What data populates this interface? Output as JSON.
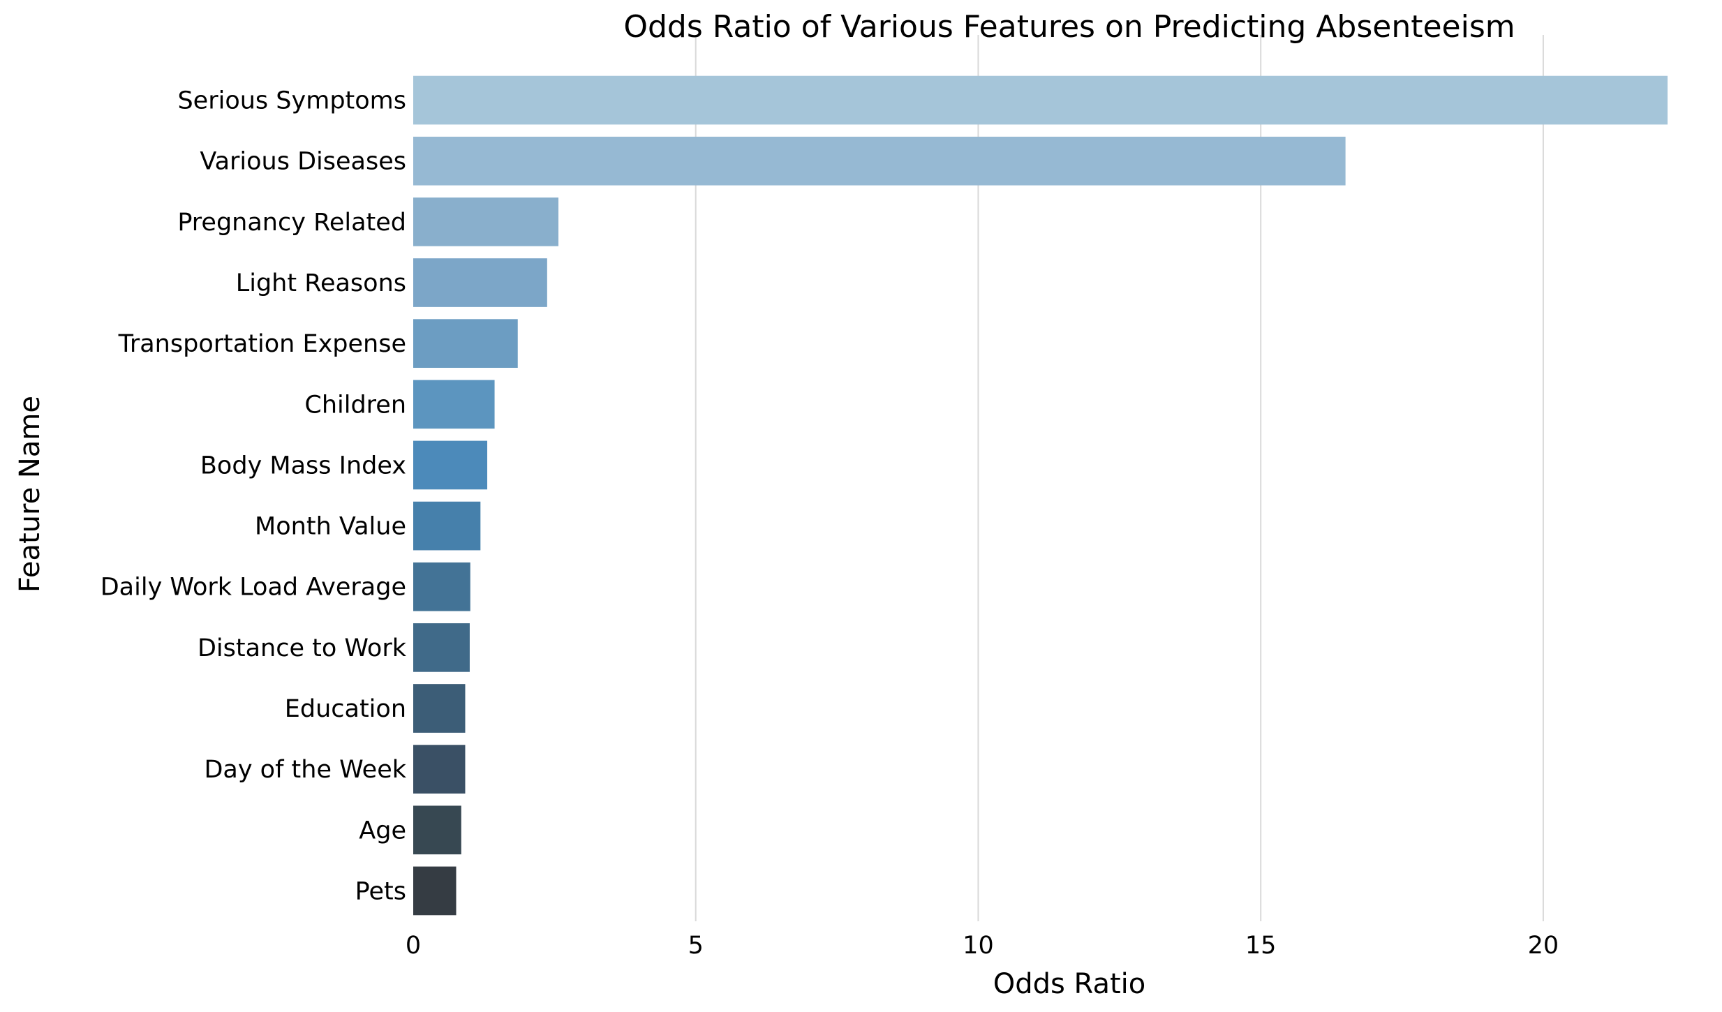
{
  "chart_data": {
    "type": "bar",
    "orientation": "horizontal",
    "title": "Odds Ratio of Various Features on Predicting Absenteeism",
    "xlabel": "Odds Ratio",
    "ylabel": "Feature Name",
    "xlim": [
      0,
      22.2
    ],
    "xticks": [
      0,
      5,
      10,
      15,
      20
    ],
    "grid": "vertical",
    "categories": [
      "Serious Symptoms",
      "Various Diseases",
      "Pregnancy Related",
      "Light Reasons",
      "Transportation Expense",
      "Children",
      "Body Mass Index",
      "Month Value",
      "Daily Work Load Average",
      "Distance to Work",
      "Education",
      "Day of the Week",
      "Age",
      "Pets"
    ],
    "values": [
      22.2,
      16.5,
      2.57,
      2.37,
      1.85,
      1.44,
      1.31,
      1.19,
      1.01,
      1.0,
      0.92,
      0.92,
      0.85,
      0.76
    ],
    "colors": [
      "#a5c5d9",
      "#96b9d3",
      "#89afcc",
      "#7ca6c8",
      "#6c9dc2",
      "#5c95bf",
      "#4c8aba",
      "#4680ab",
      "#437396",
      "#406a89",
      "#3c5d77",
      "#3a5065",
      "#374852",
      "#353c43"
    ]
  }
}
